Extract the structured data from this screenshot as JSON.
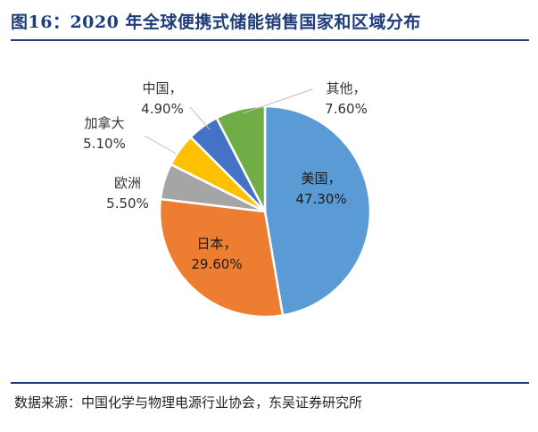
{
  "title": "图16：2020 年全球便携式储能销售国家和区域分布",
  "source": "数据来源：中国化学与物理电源行业协会，东吴证券研究所",
  "chart_data": {
    "type": "pie",
    "title": "图16：2020 年全球便携式储能销售国家和区域分布",
    "start_angle_deg": 0,
    "direction": "clockwise",
    "slices": [
      {
        "label": "美国，",
        "value": 47.3,
        "value_text": "47.30%",
        "color": "#5b9bd5",
        "label_placement": "inside"
      },
      {
        "label": "日本，",
        "value": 29.6,
        "value_text": "29.60%",
        "color": "#ed7d31",
        "label_placement": "inside"
      },
      {
        "label": "欧洲",
        "value": 5.5,
        "value_text": "5.50%",
        "color": "#a5a5a5",
        "label_placement": "outside"
      },
      {
        "label": "加拿大",
        "value": 5.1,
        "value_text": "5.10%",
        "color": "#ffc000",
        "label_placement": "outside"
      },
      {
        "label": "中国，",
        "value": 4.9,
        "value_text": "4.90%",
        "color": "#4472c4",
        "label_placement": "outside"
      },
      {
        "label": "其他，",
        "value": 7.6,
        "value_text": "7.60%",
        "color": "#70ad47",
        "label_placement": "outside"
      }
    ]
  }
}
